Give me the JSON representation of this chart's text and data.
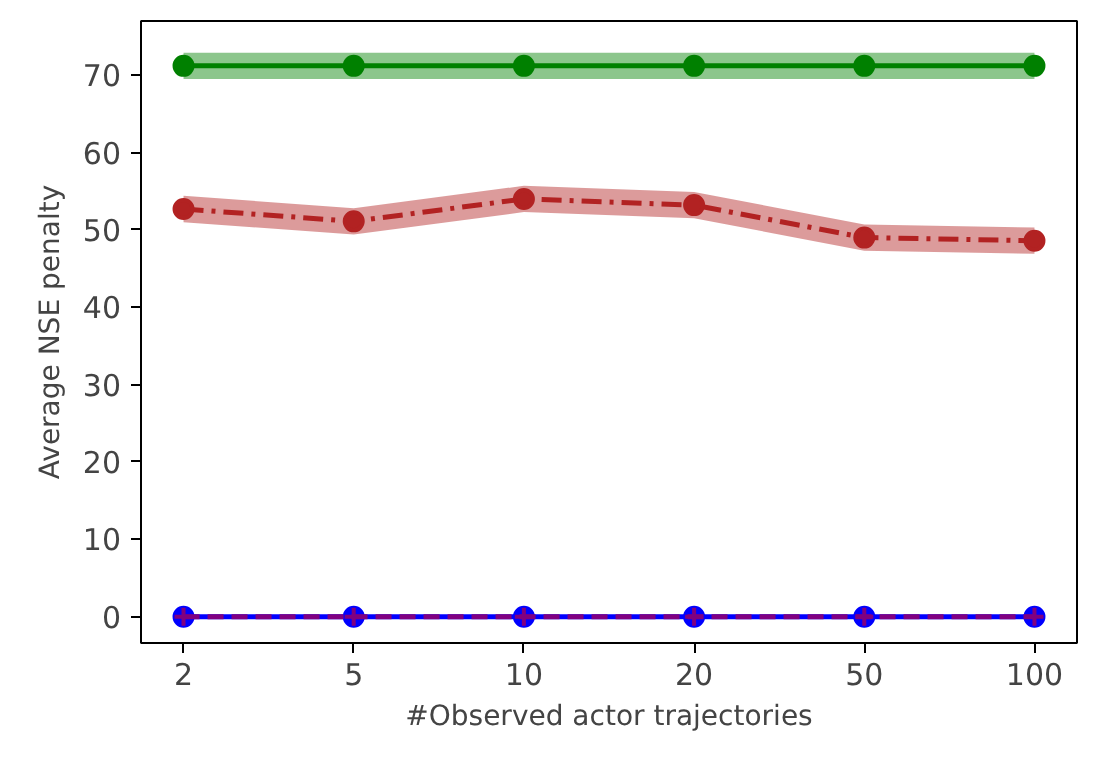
{
  "chart_data": {
    "type": "line",
    "xlabel": "#Observed actor trajectories",
    "ylabel": "Average NSE penalty",
    "categories": [
      "2",
      "5",
      "10",
      "20",
      "50",
      "100"
    ],
    "ylim": [
      -3.4,
      77
    ],
    "yticks": [
      0,
      10,
      20,
      30,
      40,
      50,
      60,
      70
    ],
    "grid": false,
    "series": [
      {
        "color": "#008000",
        "values": [
          71.2,
          71.2,
          71.2,
          71.2,
          71.2,
          71.2
        ],
        "lower": [
          69.5,
          69.5,
          69.5,
          69.5,
          69.5,
          69.5
        ],
        "upper": [
          72.9,
          72.9,
          72.9,
          72.9,
          72.9,
          72.9
        ],
        "marker": "circle",
        "line_style": "solid"
      },
      {
        "color": "#b22222",
        "values": [
          52.7,
          51.1,
          54.0,
          53.2,
          49.0,
          48.6
        ],
        "lower": [
          51.0,
          49.4,
          52.3,
          51.5,
          47.3,
          46.9
        ],
        "upper": [
          54.4,
          52.8,
          55.7,
          54.9,
          50.7,
          50.3
        ],
        "marker": "circle",
        "line_style": "dashdot"
      },
      {
        "color": "#0000ff",
        "values": [
          0,
          0,
          0,
          0,
          0,
          0
        ],
        "marker": "circle",
        "line_style": "solid"
      },
      {
        "color": "#800080",
        "values": [
          0,
          0,
          0,
          0,
          0,
          0
        ],
        "marker": "cross",
        "line_style": "dashed"
      }
    ]
  }
}
